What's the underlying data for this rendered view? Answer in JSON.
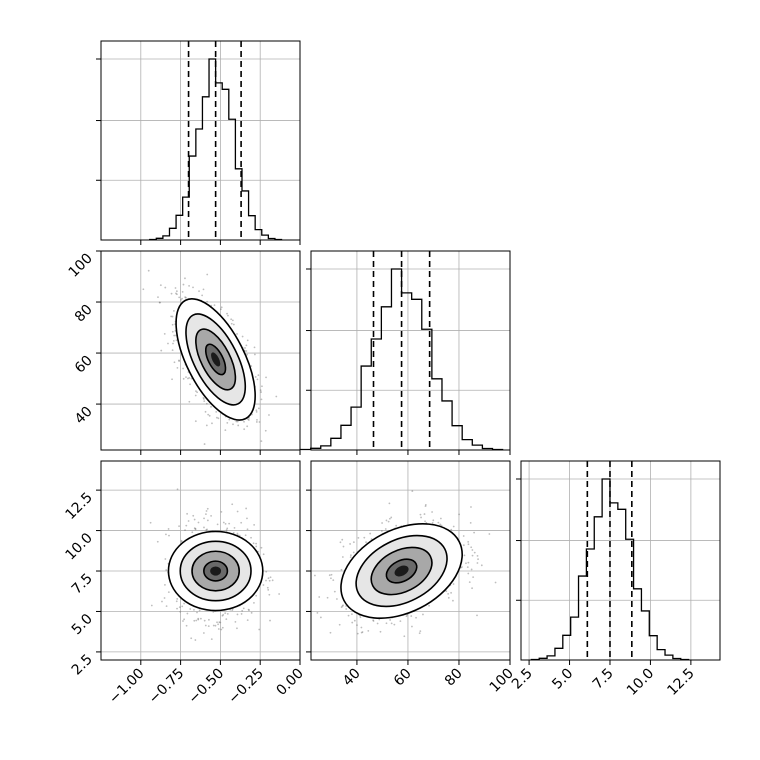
{
  "chart_data": {
    "type": "corner",
    "title": "",
    "parameters": [
      {
        "index": 0,
        "range": [
          -1.25,
          0.0
        ],
        "ticks": [
          -1.0,
          -0.75,
          -0.5,
          -0.25,
          0.0
        ],
        "tick_labels": [
          "−1.00",
          "−0.75",
          "−0.50",
          "−0.25",
          "0.00"
        ],
        "quantiles": [
          -0.7,
          -0.53,
          -0.37
        ],
        "median": -0.53,
        "sigma": 0.115
      },
      {
        "index": 1,
        "range": [
          22,
          100
        ],
        "ticks": [
          40,
          60,
          80,
          100
        ],
        "tick_labels": [
          "40",
          "60",
          "80",
          "100"
        ],
        "quantiles": [
          46.5,
          57.5,
          68.5
        ],
        "median": 57.5,
        "sigma": 11
      },
      {
        "index": 2,
        "range": [
          2.0,
          14.3
        ],
        "ticks": [
          2.5,
          5.0,
          7.5,
          10.0,
          12.5
        ],
        "tick_labels": [
          "2.5",
          "5.0",
          "7.5",
          "10.0",
          "12.5"
        ],
        "quantiles": [
          6.1,
          7.5,
          8.85
        ],
        "median": 7.5,
        "sigma": 1.35
      }
    ],
    "correlations": {
      "0-1": -0.6,
      "0-2": 0.0,
      "1-2": 0.35
    },
    "contour_levels_sigma": [
      0.5,
      1.0,
      1.5,
      2.0
    ],
    "grid": true,
    "colors": {
      "scatter": "#6e6e6e",
      "line": "#000000",
      "grid": "#b0b0b0"
    }
  }
}
